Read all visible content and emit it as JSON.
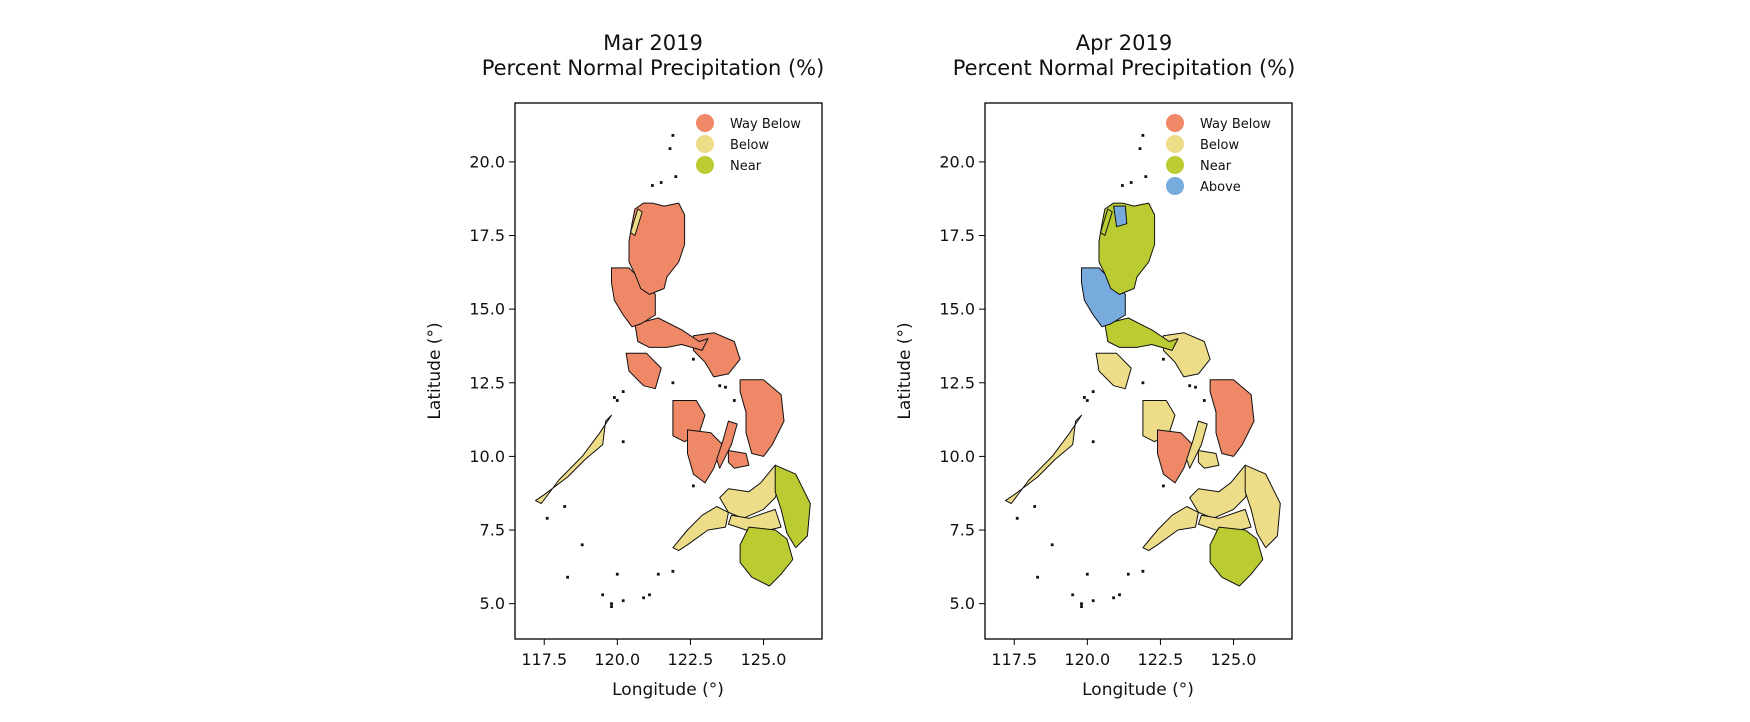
{
  "colors": {
    "way_below": "#ee8866",
    "below": "#eedd88",
    "near": "#bbcc33",
    "above": "#77aadd",
    "outline": "#111111"
  },
  "panels": [
    {
      "title_line1": "Mar 2019",
      "title_line2": "Percent Normal Precipitation (%)",
      "xlabel": "Longitude (°)",
      "ylabel": "Latitude (°)",
      "legend": [
        "Way Below",
        "Below",
        "Near"
      ]
    },
    {
      "title_line1": "Apr 2019",
      "title_line2": "Percent Normal Precipitation (%)",
      "xlabel": "Longitude (°)",
      "ylabel": "Latitude (°)",
      "legend": [
        "Way Below",
        "Below",
        "Near",
        "Above"
      ]
    }
  ],
  "axes": {
    "xlim": [
      116.5,
      127.0
    ],
    "ylim": [
      3.8,
      22.0
    ],
    "xticks": [
      "117.5",
      "120.0",
      "122.5",
      "125.0"
    ],
    "yticks": [
      "5.0",
      "7.5",
      "10.0",
      "12.5",
      "15.0",
      "17.5",
      "20.0"
    ]
  },
  "chart_data": [
    {
      "type": "choropleth",
      "title": "Mar 2019\nPercent Normal Precipitation (%)",
      "xlabel": "Longitude (°)",
      "ylabel": "Latitude (°)",
      "categories": [
        "Way Below",
        "Below",
        "Near"
      ],
      "regions": {
        "northern_luzon": "Way Below",
        "northern_luzon_west_strip": "Below",
        "central_luzon": "Way Below",
        "southern_luzon": "Way Below",
        "bicol": "Way Below",
        "mindoro": "Way Below",
        "samar_leyte": "Way Below",
        "panay": "Way Below",
        "negros": "Way Below",
        "cebu": "Way Below",
        "bohol": "Way Below",
        "palawan": "Below",
        "northern_mindanao": "Below",
        "western_mindanao": "Below",
        "eastern_mindanao": "Near",
        "southern_mindanao": "Near",
        "central_mindanao": "Below"
      }
    },
    {
      "type": "choropleth",
      "title": "Apr 2019\nPercent Normal Precipitation (%)",
      "xlabel": "Longitude (°)",
      "ylabel": "Latitude (°)",
      "categories": [
        "Way Below",
        "Below",
        "Near",
        "Above"
      ],
      "regions": {
        "northern_luzon": "Near",
        "northern_luzon_west_strip": "Near",
        "ilocos_north_patch": "Above",
        "central_luzon": "Above",
        "southern_luzon": "Near",
        "bicol": "Below",
        "mindoro": "Below",
        "samar_leyte": "Way Below",
        "panay": "Below",
        "negros": "Way Below",
        "cebu": "Below",
        "bohol": "Below",
        "palawan": "Below",
        "northern_mindanao": "Below",
        "western_mindanao": "Below",
        "eastern_mindanao": "Below",
        "southern_mindanao": "Near",
        "central_mindanao": "Below"
      }
    }
  ]
}
